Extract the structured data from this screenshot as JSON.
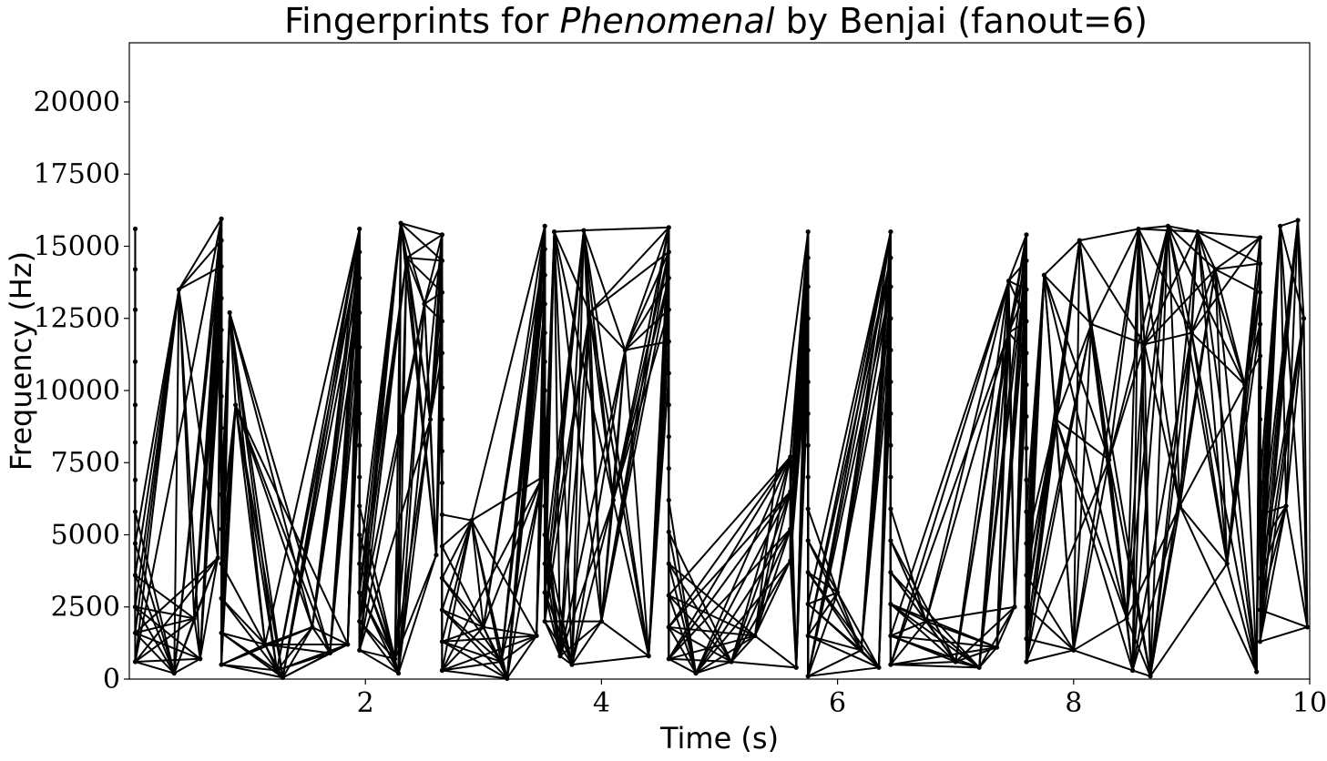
{
  "chart_data": {
    "type": "line",
    "title_prefix": "Fingerprints for ",
    "title_song": "Phenomenal",
    "title_suffix": " by Benjai (fanout=6)",
    "xlabel": "Time (s)",
    "ylabel": "Frequency (Hz)",
    "xlim": [
      0,
      10
    ],
    "ylim": [
      0,
      22050
    ],
    "xticks": [
      2,
      4,
      6,
      8,
      10
    ],
    "yticks": [
      0,
      2500,
      5000,
      7500,
      10000,
      12500,
      15000,
      17500,
      20000
    ],
    "grid": false,
    "legend": "none",
    "series_color": "#000000",
    "fanout": 6,
    "peaks": [
      [
        0.05,
        15600
      ],
      [
        0.05,
        14200
      ],
      [
        0.05,
        12800
      ],
      [
        0.05,
        11000
      ],
      [
        0.05,
        9500
      ],
      [
        0.05,
        8200
      ],
      [
        0.05,
        6900
      ],
      [
        0.05,
        5800
      ],
      [
        0.05,
        4700
      ],
      [
        0.05,
        3600
      ],
      [
        0.05,
        2500
      ],
      [
        0.05,
        1600
      ],
      [
        0.05,
        600
      ],
      [
        0.38,
        200
      ],
      [
        0.42,
        13500
      ],
      [
        0.55,
        2100
      ],
      [
        0.6,
        700
      ],
      [
        0.75,
        4200
      ],
      [
        0.78,
        15950
      ],
      [
        0.78,
        15200
      ],
      [
        0.78,
        14300
      ],
      [
        0.78,
        13200
      ],
      [
        0.78,
        12100
      ],
      [
        0.78,
        11000
      ],
      [
        0.78,
        9800
      ],
      [
        0.78,
        8700
      ],
      [
        0.78,
        7500
      ],
      [
        0.78,
        6400
      ],
      [
        0.78,
        5200
      ],
      [
        0.78,
        4000
      ],
      [
        0.78,
        2800
      ],
      [
        0.78,
        1600
      ],
      [
        0.78,
        500
      ],
      [
        0.85,
        12700
      ],
      [
        0.9,
        9500
      ],
      [
        1.15,
        1200
      ],
      [
        1.25,
        300
      ],
      [
        1.3,
        50
      ],
      [
        1.55,
        1800
      ],
      [
        1.7,
        900
      ],
      [
        1.85,
        1200
      ],
      [
        1.95,
        15600
      ],
      [
        1.95,
        14800
      ],
      [
        1.95,
        13900
      ],
      [
        1.95,
        12700
      ],
      [
        1.95,
        11500
      ],
      [
        1.95,
        10300
      ],
      [
        1.95,
        9200
      ],
      [
        1.95,
        8100
      ],
      [
        1.95,
        7000
      ],
      [
        1.95,
        6000
      ],
      [
        1.95,
        5000
      ],
      [
        1.95,
        4000
      ],
      [
        1.95,
        3000
      ],
      [
        1.95,
        2000
      ],
      [
        1.95,
        1000
      ],
      [
        2.25,
        700
      ],
      [
        2.28,
        200
      ],
      [
        2.3,
        15800
      ],
      [
        2.35,
        14600
      ],
      [
        2.5,
        13000
      ],
      [
        2.55,
        9000
      ],
      [
        2.6,
        4300
      ],
      [
        2.65,
        15400
      ],
      [
        2.65,
        14500
      ],
      [
        2.65,
        13400
      ],
      [
        2.65,
        12400
      ],
      [
        2.65,
        11300
      ],
      [
        2.65,
        10100
      ],
      [
        2.65,
        9000
      ],
      [
        2.65,
        7900
      ],
      [
        2.65,
        6800
      ],
      [
        2.65,
        5700
      ],
      [
        2.65,
        4600
      ],
      [
        2.65,
        3500
      ],
      [
        2.65,
        2400
      ],
      [
        2.65,
        1300
      ],
      [
        2.65,
        300
      ],
      [
        2.9,
        5500
      ],
      [
        3.0,
        1800
      ],
      [
        3.15,
        600
      ],
      [
        3.2,
        20
      ],
      [
        3.45,
        1500
      ],
      [
        3.5,
        7000
      ],
      [
        3.52,
        15700
      ],
      [
        3.52,
        14900
      ],
      [
        3.52,
        14000
      ],
      [
        3.52,
        13000
      ],
      [
        3.52,
        12000
      ],
      [
        3.52,
        11000
      ],
      [
        3.52,
        10000
      ],
      [
        3.52,
        9000
      ],
      [
        3.52,
        8000
      ],
      [
        3.52,
        7000
      ],
      [
        3.52,
        6000
      ],
      [
        3.52,
        5000
      ],
      [
        3.52,
        4000
      ],
      [
        3.52,
        3000
      ],
      [
        3.52,
        2000
      ],
      [
        3.6,
        15500
      ],
      [
        3.65,
        800
      ],
      [
        3.75,
        500
      ],
      [
        3.85,
        15550
      ],
      [
        3.9,
        12700
      ],
      [
        4.0,
        2000
      ],
      [
        4.1,
        6200
      ],
      [
        4.2,
        11400
      ],
      [
        4.4,
        800
      ],
      [
        4.57,
        15650
      ],
      [
        4.57,
        14800
      ],
      [
        4.57,
        13900
      ],
      [
        4.57,
        12800
      ],
      [
        4.57,
        11700
      ],
      [
        4.57,
        10600
      ],
      [
        4.57,
        9500
      ],
      [
        4.57,
        8400
      ],
      [
        4.57,
        7300
      ],
      [
        4.57,
        6200
      ],
      [
        4.57,
        5100
      ],
      [
        4.57,
        4000
      ],
      [
        4.57,
        2900
      ],
      [
        4.57,
        1800
      ],
      [
        4.57,
        700
      ],
      [
        4.8,
        200
      ],
      [
        5.1,
        600
      ],
      [
        5.3,
        1500
      ],
      [
        5.6,
        7700
      ],
      [
        5.6,
        6500
      ],
      [
        5.6,
        5200
      ],
      [
        5.6,
        4100
      ],
      [
        5.65,
        400
      ],
      [
        5.75,
        15500
      ],
      [
        5.75,
        14600
      ],
      [
        5.75,
        13600
      ],
      [
        5.75,
        12500
      ],
      [
        5.75,
        11400
      ],
      [
        5.75,
        10300
      ],
      [
        5.75,
        9200
      ],
      [
        5.75,
        8100
      ],
      [
        5.75,
        7000
      ],
      [
        5.75,
        5900
      ],
      [
        5.75,
        4800
      ],
      [
        5.75,
        3700
      ],
      [
        5.75,
        2600
      ],
      [
        5.75,
        1500
      ],
      [
        5.75,
        100
      ],
      [
        6.0,
        3000
      ],
      [
        6.2,
        1000
      ],
      [
        6.35,
        400
      ],
      [
        6.45,
        15500
      ],
      [
        6.45,
        14600
      ],
      [
        6.45,
        13600
      ],
      [
        6.45,
        12500
      ],
      [
        6.45,
        11400
      ],
      [
        6.45,
        10300
      ],
      [
        6.45,
        9200
      ],
      [
        6.45,
        8100
      ],
      [
        6.45,
        7000
      ],
      [
        6.45,
        5900
      ],
      [
        6.45,
        4800
      ],
      [
        6.45,
        3700
      ],
      [
        6.45,
        2600
      ],
      [
        6.45,
        1500
      ],
      [
        6.45,
        500
      ],
      [
        6.75,
        2000
      ],
      [
        7.0,
        600
      ],
      [
        7.2,
        400
      ],
      [
        7.35,
        1100
      ],
      [
        7.45,
        13800
      ],
      [
        7.45,
        12000
      ],
      [
        7.5,
        2500
      ],
      [
        7.6,
        15400
      ],
      [
        7.6,
        14500
      ],
      [
        7.6,
        13500
      ],
      [
        7.6,
        12400
      ],
      [
        7.6,
        11300
      ],
      [
        7.6,
        10200
      ],
      [
        7.6,
        9100
      ],
      [
        7.6,
        8000
      ],
      [
        7.6,
        6900
      ],
      [
        7.6,
        5800
      ],
      [
        7.6,
        4700
      ],
      [
        7.6,
        3600
      ],
      [
        7.6,
        2500
      ],
      [
        7.6,
        1400
      ],
      [
        7.6,
        600
      ],
      [
        7.75,
        14000
      ],
      [
        7.85,
        9000
      ],
      [
        8.0,
        1000
      ],
      [
        8.05,
        15200
      ],
      [
        8.15,
        12300
      ],
      [
        8.3,
        7600
      ],
      [
        8.45,
        2100
      ],
      [
        8.5,
        300
      ],
      [
        8.55,
        15600
      ],
      [
        8.6,
        11600
      ],
      [
        8.65,
        100
      ],
      [
        8.8,
        15700
      ],
      [
        8.9,
        6000
      ],
      [
        9.0,
        12000
      ],
      [
        9.05,
        15500
      ],
      [
        9.2,
        14200
      ],
      [
        9.3,
        4000
      ],
      [
        9.45,
        10200
      ],
      [
        9.55,
        250
      ],
      [
        9.58,
        15300
      ],
      [
        9.58,
        14400
      ],
      [
        9.58,
        13400
      ],
      [
        9.58,
        12300
      ],
      [
        9.58,
        11200
      ],
      [
        9.58,
        10100
      ],
      [
        9.58,
        9000
      ],
      [
        9.58,
        7900
      ],
      [
        9.58,
        6800
      ],
      [
        9.58,
        5700
      ],
      [
        9.58,
        4600
      ],
      [
        9.58,
        3500
      ],
      [
        9.58,
        2400
      ],
      [
        9.58,
        1300
      ],
      [
        9.75,
        15700
      ],
      [
        9.8,
        6000
      ],
      [
        9.9,
        15900
      ],
      [
        9.95,
        12500
      ],
      [
        9.98,
        1800
      ]
    ]
  }
}
